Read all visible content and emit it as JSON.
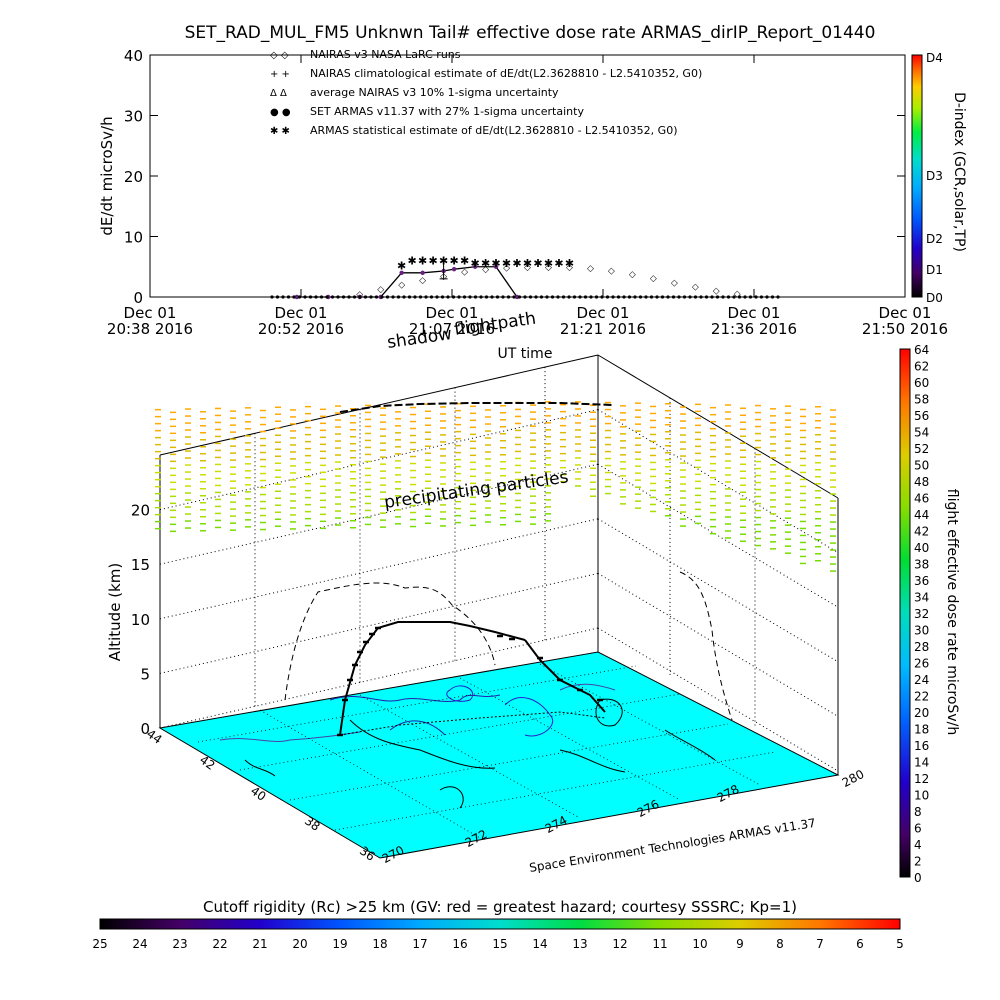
{
  "title": "SET_RAD_MUL_FM5 Unknwn Tail#  effective dose rate ARMAS_dirIP_Report_01440",
  "top_panel": {
    "y_label": "dE/dt microSv/h",
    "y_ticks": [
      "0",
      "10",
      "20",
      "30",
      "40"
    ],
    "x_ticks": [
      {
        "date": "Dec 01",
        "time": "20:38 2016"
      },
      {
        "date": "Dec 01",
        "time": "20:52 2016"
      },
      {
        "date": "Dec 01",
        "time": "21:07 2016"
      },
      {
        "date": "Dec 01",
        "time": "21:21 2016"
      },
      {
        "date": "Dec 01",
        "time": "21:36 2016"
      },
      {
        "date": "Dec 01",
        "time": "21:50 2016"
      }
    ],
    "x_label": "UT time",
    "legend": [
      {
        "symbol": "◇ ◇",
        "text": "NAIRAS v3 NASA LaRC runs",
        "color": "#000000"
      },
      {
        "symbol": "+ +",
        "text": "NAIRAS climatological estimate of dE/dt(L2.3628810 - L2.5410352, G0)",
        "color": "#000000"
      },
      {
        "symbol": "Δ Δ",
        "text": "average NAIRAS v3 10% 1-sigma uncertainty",
        "color": "#000000"
      },
      {
        "symbol": "● ●",
        "text": "SET ARMAS v11.37 with 27% 1-sigma uncertainty",
        "color": "#0000ee"
      },
      {
        "symbol": "✱ ✱",
        "text": "ARMAS statistical estimate of dE/dt(L2.3628810 - L2.5410352, G0)",
        "color": "#000000"
      }
    ],
    "d_index": {
      "label": "D-index (GCR,solar,TP)",
      "ticks": [
        "D0",
        "D1",
        "D2",
        "D3",
        "D4"
      ]
    }
  },
  "chart_data": [
    {
      "type": "line",
      "x_unit": "UT time (hh:mm), 2016-12-01",
      "ylabel": "dE/dt microSv/h",
      "ylim": [
        0,
        40
      ],
      "series": [
        {
          "name": "SET ARMAS v11.37 with 27% 1-sigma uncertainty",
          "x": [
            "20:52",
            "20:55",
            "20:58",
            "21:00",
            "21:02",
            "21:04",
            "21:06",
            "21:07",
            "21:09",
            "21:11",
            "21:13"
          ],
          "values": [
            0,
            0,
            0,
            0,
            4,
            4,
            4.3,
            4.6,
            5,
            5,
            0
          ]
        },
        {
          "name": "NAIRAS v3 NASA LaRC runs",
          "x": [
            "20:58",
            "21:00",
            "21:02",
            "21:04",
            "21:06",
            "21:08",
            "21:10",
            "21:12",
            "21:14",
            "21:16",
            "21:18",
            "21:20",
            "21:22",
            "21:24",
            "21:26",
            "21:28",
            "21:30",
            "21:32",
            "21:34"
          ],
          "values": [
            0.5,
            1.3,
            2.1,
            2.8,
            3.5,
            4.2,
            4.6,
            4.9,
            5,
            5,
            5,
            4.8,
            4.4,
            3.8,
            3.1,
            2.4,
            1.7,
            1.1,
            0.6
          ]
        },
        {
          "name": "ARMAS statistical estimate of dE/dt(L2.3628810 - L2.5410352, G0)",
          "x": [
            "21:02",
            "21:03",
            "21:04",
            "21:05",
            "21:06",
            "21:07",
            "21:08",
            "21:09",
            "21:10",
            "21:11",
            "21:12",
            "21:13",
            "21:14",
            "21:15",
            "21:16",
            "21:17",
            "21:18"
          ],
          "values": [
            5.2,
            6,
            6,
            6,
            6,
            6,
            6,
            5.6,
            5.6,
            5.6,
            5.6,
            5.6,
            5.6,
            5.6,
            5.6,
            5.6,
            5.6
          ]
        }
      ]
    }
  ],
  "bottom_panel": {
    "z_label": "Altitude (km)",
    "z_ticks": [
      "0",
      "5",
      "10",
      "15",
      "20"
    ],
    "lat_ticks": [
      "44",
      "42",
      "40",
      "38",
      "36"
    ],
    "lon_ticks": [
      "270",
      "272",
      "274",
      "276",
      "278",
      "280"
    ],
    "annotations": {
      "shadow": "shadow",
      "flightpath": "flightpath",
      "precip": "precipitating particles"
    },
    "credit": "Space Environment Technologies ARMAS v11.37",
    "dose_colorbar": {
      "label": "flight effective dose rate microSv/h",
      "ticks": [
        "0",
        "2",
        "4",
        "6",
        "8",
        "10",
        "12",
        "14",
        "16",
        "18",
        "20",
        "22",
        "24",
        "26",
        "28",
        "30",
        "32",
        "34",
        "36",
        "38",
        "40",
        "42",
        "44",
        "46",
        "48",
        "50",
        "52",
        "54",
        "56",
        "58",
        "60",
        "62",
        "64"
      ]
    },
    "map_color": "#00ffff"
  },
  "cutoff_bar": {
    "title": "Cutoff rigidity (Rc) >25 km (GV: red = greatest hazard; courtesy SSSRC; Kp=1)",
    "ticks": [
      "25",
      "24",
      "23",
      "22",
      "21",
      "20",
      "19",
      "18",
      "17",
      "16",
      "15",
      "14",
      "13",
      "12",
      "11",
      "10",
      "9",
      "8",
      "7",
      "6",
      "5"
    ]
  }
}
